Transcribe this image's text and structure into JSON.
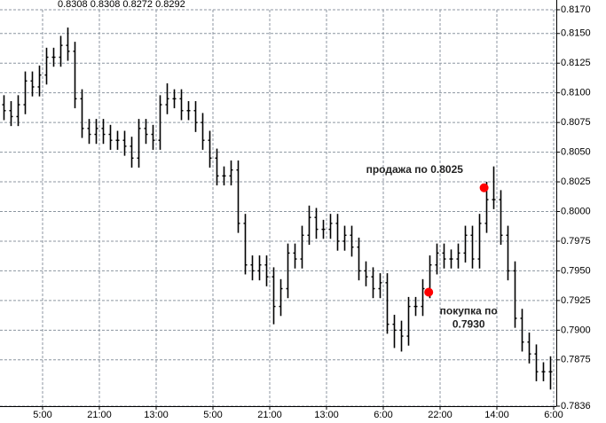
{
  "chart_data": {
    "type": "ohlc",
    "header": "0.8308 0.8308 0.8272 0.8292",
    "color": "#000000",
    "grid": true,
    "xlim": [
      0,
      78.375
    ],
    "ylim": [
      0.7836,
      0.817
    ],
    "yticks": [
      {
        "value": 0.817,
        "label": "0.8170"
      },
      {
        "value": 0.815,
        "label": "0.8150"
      },
      {
        "value": 0.8125,
        "label": "0.8125"
      },
      {
        "value": 0.81,
        "label": "0.8100"
      },
      {
        "value": 0.8075,
        "label": "0.8075"
      },
      {
        "value": 0.805,
        "label": "0.8050"
      },
      {
        "value": 0.8025,
        "label": "0.8025"
      },
      {
        "value": 0.8,
        "label": "0.8000"
      },
      {
        "value": 0.7975,
        "label": "0.7975"
      },
      {
        "value": 0.795,
        "label": "0.7950"
      },
      {
        "value": 0.7925,
        "label": "0.7925"
      },
      {
        "value": 0.79,
        "label": "0.7900"
      },
      {
        "value": 0.7875,
        "label": "0.7875"
      },
      {
        "value": 0.7836,
        "label": "0.7836"
      }
    ],
    "xticks": [
      {
        "value": 6,
        "label": "5:00"
      },
      {
        "value": 14,
        "label": "21:00"
      },
      {
        "value": 22,
        "label": "13:00"
      },
      {
        "value": 30,
        "label": "5:00"
      },
      {
        "value": 38,
        "label": "21:00"
      },
      {
        "value": 46,
        "label": "13:00"
      },
      {
        "value": 54,
        "label": "6:00"
      },
      {
        "value": 62,
        "label": "22:00"
      },
      {
        "value": 70,
        "label": "14:00"
      },
      {
        "value": 78,
        "label": "6:00"
      }
    ],
    "open": [
      0.809,
      0.8085,
      0.808,
      0.809,
      0.811,
      0.8105,
      0.8115,
      0.813,
      0.813,
      0.814,
      0.8135,
      0.8095,
      0.807,
      0.8065,
      0.807,
      0.8065,
      0.806,
      0.806,
      0.8055,
      0.8045,
      0.807,
      0.8065,
      0.806,
      0.809,
      0.8095,
      0.8095,
      0.8085,
      0.8085,
      0.8075,
      0.806,
      0.8045,
      0.803,
      0.803,
      0.8035,
      0.799,
      0.7955,
      0.795,
      0.7955,
      0.7945,
      0.792,
      0.7935,
      0.7965,
      0.796,
      0.798,
      0.7995,
      0.7985,
      0.7985,
      0.799,
      0.7975,
      0.798,
      0.797,
      0.795,
      0.7945,
      0.7935,
      0.794,
      0.7905,
      0.79,
      0.7895,
      0.792,
      0.792,
      0.7935,
      0.7955,
      0.7965,
      0.796,
      0.796,
      0.7965,
      0.798,
      0.796,
      0.799,
      0.801,
      0.801,
      0.798,
      0.795,
      0.791,
      0.789,
      0.788,
      0.7865,
      0.7865
    ],
    "high": [
      0.8098,
      0.8093,
      0.8098,
      0.8118,
      0.8118,
      0.8123,
      0.8138,
      0.8138,
      0.8148,
      0.8155,
      0.8143,
      0.8103,
      0.8078,
      0.8078,
      0.8078,
      0.8073,
      0.8068,
      0.8068,
      0.8063,
      0.8078,
      0.8078,
      0.8073,
      0.8098,
      0.8108,
      0.8103,
      0.8103,
      0.8093,
      0.8093,
      0.8083,
      0.8068,
      0.8053,
      0.8038,
      0.8043,
      0.8043,
      0.7998,
      0.7963,
      0.7963,
      0.7963,
      0.7953,
      0.7943,
      0.7973,
      0.7973,
      0.7988,
      0.8005,
      0.8003,
      0.7993,
      0.7998,
      0.7998,
      0.7988,
      0.7988,
      0.7978,
      0.7958,
      0.7953,
      0.7948,
      0.7948,
      0.7913,
      0.7908,
      0.7928,
      0.7928,
      0.7943,
      0.7963,
      0.7973,
      0.7973,
      0.7968,
      0.7973,
      0.7988,
      0.7988,
      0.7998,
      0.8025,
      0.8038,
      0.8018,
      0.7988,
      0.7958,
      0.7918,
      0.7898,
      0.7888,
      0.7873,
      0.7878
    ],
    "low": [
      0.8077,
      0.8072,
      0.8072,
      0.8082,
      0.8097,
      0.8097,
      0.8107,
      0.8122,
      0.8122,
      0.8127,
      0.8087,
      0.8062,
      0.8057,
      0.8057,
      0.8057,
      0.8052,
      0.8052,
      0.8047,
      0.8037,
      0.8037,
      0.8057,
      0.8052,
      0.8052,
      0.8082,
      0.8087,
      0.8077,
      0.8077,
      0.8067,
      0.8052,
      0.8037,
      0.8022,
      0.8022,
      0.8022,
      0.7982,
      0.7947,
      0.7942,
      0.7942,
      0.7937,
      0.7905,
      0.7912,
      0.7927,
      0.7952,
      0.7952,
      0.7972,
      0.7977,
      0.7977,
      0.7977,
      0.7967,
      0.7967,
      0.7962,
      0.7942,
      0.7937,
      0.7927,
      0.7927,
      0.7897,
      0.7885,
      0.7882,
      0.7887,
      0.7912,
      0.7912,
      0.7927,
      0.7947,
      0.7952,
      0.7952,
      0.7952,
      0.7957,
      0.7952,
      0.7952,
      0.7982,
      0.8002,
      0.7972,
      0.7942,
      0.7902,
      0.7882,
      0.7872,
      0.7857,
      0.7857,
      0.785
    ],
    "close": [
      0.8085,
      0.808,
      0.809,
      0.811,
      0.8105,
      0.8115,
      0.813,
      0.813,
      0.814,
      0.8135,
      0.8095,
      0.807,
      0.8065,
      0.807,
      0.8065,
      0.806,
      0.806,
      0.8055,
      0.8045,
      0.807,
      0.8065,
      0.806,
      0.809,
      0.8095,
      0.8095,
      0.8085,
      0.8085,
      0.8075,
      0.806,
      0.8045,
      0.803,
      0.803,
      0.8035,
      0.799,
      0.7955,
      0.795,
      0.7955,
      0.7945,
      0.792,
      0.7935,
      0.7965,
      0.796,
      0.798,
      0.7995,
      0.7985,
      0.7985,
      0.799,
      0.7975,
      0.798,
      0.797,
      0.795,
      0.7945,
      0.7935,
      0.794,
      0.7905,
      0.79,
      0.7895,
      0.792,
      0.792,
      0.7935,
      0.7955,
      0.7965,
      0.796,
      0.796,
      0.7965,
      0.798,
      0.796,
      0.799,
      0.801,
      0.801,
      0.798,
      0.795,
      0.791,
      0.789,
      0.788,
      0.7865,
      0.7865,
      0.7865
    ],
    "annotations": [
      {
        "lines": [
          "продажа по 0.8025"
        ],
        "x": 68.2,
        "y": 0.802,
        "color": "#ff0000"
      },
      {
        "lines": [
          "покупка по",
          "0.7930"
        ],
        "x": 60.4,
        "y": 0.7932,
        "color": "#ff0000"
      }
    ]
  }
}
